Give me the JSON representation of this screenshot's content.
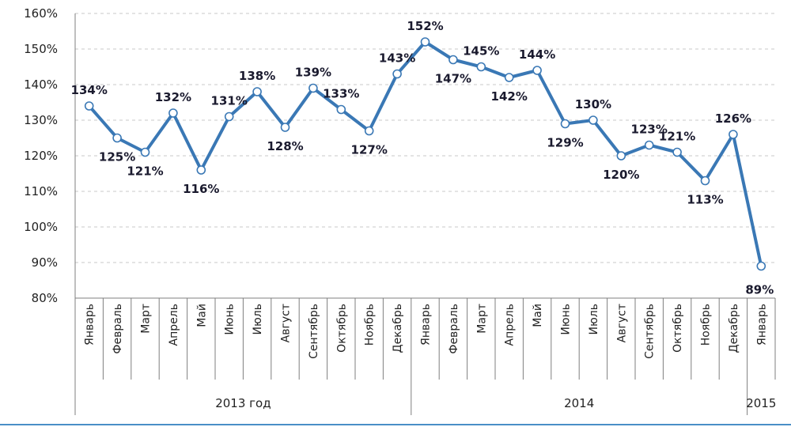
{
  "chart_data": {
    "type": "line",
    "title": "",
    "xlabel": "",
    "ylabel": "",
    "ylim": [
      80,
      160
    ],
    "yticks": [
      80,
      90,
      100,
      110,
      120,
      130,
      140,
      150,
      160
    ],
    "ytick_labels": [
      "80%",
      "90%",
      "100%",
      "110%",
      "120%",
      "130%",
      "140%",
      "150%",
      "160%"
    ],
    "grid": true,
    "categories": [
      "Январь",
      "Февраль",
      "Март",
      "Апрель",
      "Май",
      "Июнь",
      "Июль",
      "Август",
      "Сентябрь",
      "Октябрь",
      "Ноябрь",
      "Декабрь",
      "Январь",
      "Февраль",
      "Март",
      "Апрель",
      "Май",
      "Июнь",
      "Июль",
      "Август",
      "Сентябрь",
      "Октябрь",
      "Ноябрь",
      "Декабрь",
      "Январь"
    ],
    "values": [
      134,
      125,
      121,
      132,
      116,
      131,
      138,
      128,
      139,
      133,
      127,
      143,
      152,
      147,
      145,
      142,
      144,
      129,
      130,
      120,
      123,
      121,
      113,
      126,
      89
    ],
    "data_labels": [
      "134%",
      "125%",
      "121%",
      "132%",
      "116%",
      "131%",
      "138%",
      "128%",
      "139%",
      "133%",
      "127%",
      "143%",
      "152%",
      "147%",
      "145%",
      "142%",
      "144%",
      "129%",
      "130%",
      "120%",
      "123%",
      "121%",
      "113%",
      "126%",
      "89%"
    ],
    "label_position": [
      "above",
      "below",
      "below",
      "above",
      "below",
      "above",
      "above",
      "below",
      "above",
      "above",
      "below",
      "above",
      "above",
      "below",
      "above",
      "below",
      "above",
      "below",
      "above",
      "below",
      "above",
      "above",
      "below",
      "above",
      "below"
    ],
    "year_groups": [
      {
        "label": "2013 год",
        "start": 0,
        "end": 11
      },
      {
        "label": "2014",
        "start": 12,
        "end": 23
      },
      {
        "label": "2015",
        "start": 24,
        "end": 24
      }
    ],
    "series_color": "#3a78b5"
  }
}
